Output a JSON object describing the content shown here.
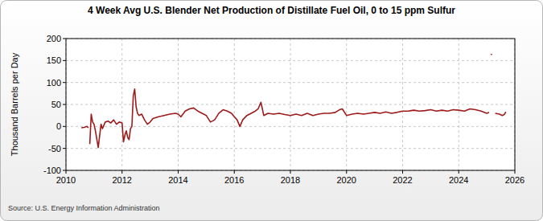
{
  "chart_data": {
    "type": "line",
    "title": "4 Week Avg U.S. Blender Net Production of Distillate Fuel Oil, 0 to 15 ppm Sulfur",
    "y_label": "Thousand Barrels per Day",
    "source": "Source: U.S. Energy Information Administration",
    "color": "#9e1b1b",
    "grid": true,
    "xlim": [
      2010,
      2026
    ],
    "xticks": [
      2010,
      2012,
      2014,
      2016,
      2018,
      2020,
      2022,
      2024,
      2026
    ],
    "ylim": [
      -100,
      200
    ],
    "yticks": [
      -100,
      -50,
      0,
      50,
      100,
      150,
      200
    ],
    "x": [
      2010.55,
      2010.65,
      2010.75,
      2010.8,
      null,
      2010.85,
      2010.9,
      2010.95,
      2011.0,
      2011.05,
      2011.15,
      2011.25,
      2011.3,
      2011.4,
      2011.5,
      2011.6,
      2011.7,
      2011.8,
      2011.9,
      2012.0,
      2012.05,
      2012.1,
      2012.15,
      2012.2,
      2012.25,
      2012.3,
      2012.35,
      2012.4,
      2012.45,
      2012.5,
      2012.55,
      2012.6,
      2012.7,
      2012.8,
      2012.9,
      2013.0,
      2013.1,
      2013.3,
      2013.5,
      2013.7,
      2013.9,
      2014.0,
      2014.1,
      2014.25,
      2014.4,
      2014.55,
      2014.7,
      2014.85,
      2015.0,
      2015.15,
      2015.3,
      2015.45,
      2015.6,
      2015.75,
      2015.9,
      2016.0,
      2016.1,
      2016.2,
      2016.3,
      2016.45,
      2016.6,
      2016.75,
      2016.85,
      2016.95,
      2017.05,
      2017.2,
      2017.4,
      2017.6,
      2017.8,
      2018.0,
      2018.2,
      2018.4,
      2018.6,
      2018.8,
      2019.0,
      2019.2,
      2019.4,
      2019.6,
      2019.75,
      2019.85,
      2020.0,
      2020.2,
      2020.4,
      2020.6,
      2020.8,
      2021.0,
      2021.2,
      2021.4,
      2021.6,
      2021.8,
      2022.0,
      2022.2,
      2022.4,
      2022.6,
      2022.8,
      2023.0,
      2023.2,
      2023.4,
      2023.6,
      2023.8,
      2024.0,
      2024.2,
      2024.4,
      2024.6,
      2024.8,
      2025.0,
      2025.08,
      2025.12,
      2025.15,
      2025.18,
      2025.22,
      2025.3,
      2025.45,
      2025.55,
      2025.62,
      2025.68
    ],
    "values": [
      -3,
      -2,
      0,
      -3,
      null,
      -40,
      28,
      10,
      5,
      -10,
      -48,
      5,
      -5,
      10,
      12,
      8,
      15,
      5,
      10,
      8,
      -35,
      -20,
      -10,
      -25,
      -30,
      -5,
      0,
      70,
      85,
      45,
      30,
      25,
      28,
      15,
      5,
      10,
      18,
      22,
      25,
      28,
      30,
      28,
      22,
      35,
      40,
      42,
      35,
      30,
      25,
      10,
      15,
      30,
      38,
      35,
      30,
      22,
      15,
      0,
      15,
      25,
      30,
      35,
      40,
      55,
      25,
      30,
      28,
      30,
      27,
      25,
      28,
      25,
      30,
      25,
      28,
      30,
      30,
      32,
      38,
      40,
      25,
      28,
      30,
      28,
      30,
      32,
      30,
      33,
      30,
      32,
      35,
      35,
      37,
      35,
      36,
      38,
      35,
      37,
      35,
      38,
      37,
      35,
      40,
      38,
      35,
      30,
      32,
      null,
      165,
      163,
      null,
      30,
      28,
      25,
      27,
      33
    ]
  }
}
